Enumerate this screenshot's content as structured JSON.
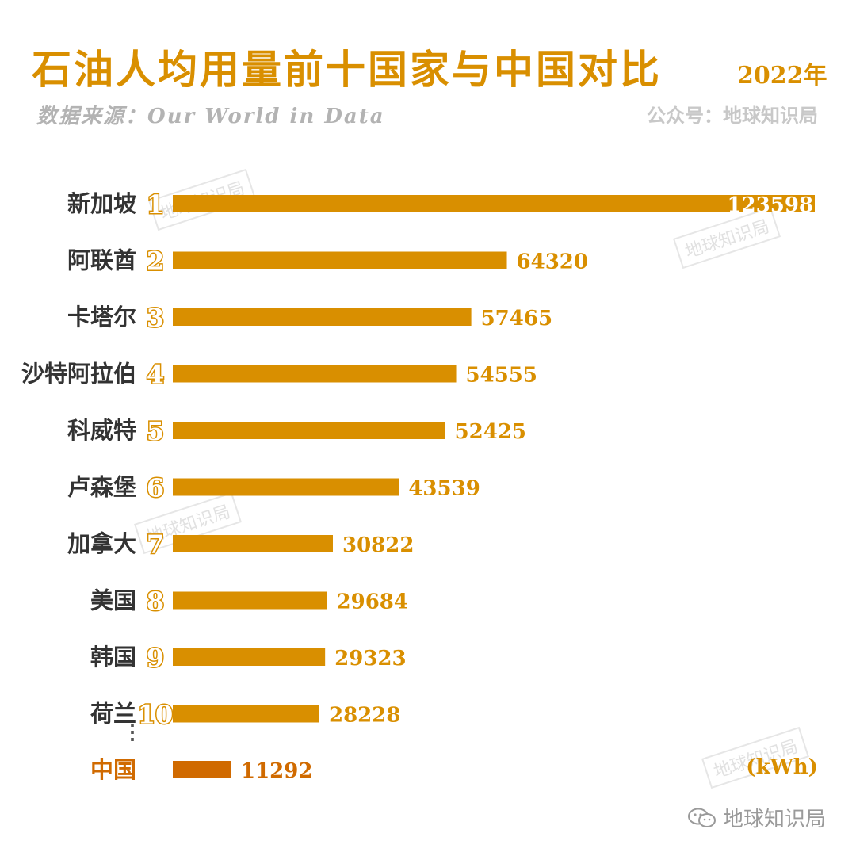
{
  "header": {
    "title": "石油人均用量前十国家与中国对比",
    "year": "2022年",
    "source": "数据来源：Our World in Data",
    "account": "公众号：地球知识局"
  },
  "watermark_text": "地球知识局",
  "footer": {
    "brand": "地球知识局",
    "icon": "wechat-icon"
  },
  "colors": {
    "bar": "#d98f00",
    "highlight_bar": "#d06a00",
    "badge": "#d98f00"
  },
  "chart_data": {
    "type": "bar",
    "orientation": "horizontal",
    "title": "石油人均用量前十国家与中国对比",
    "unit": "(kWh)",
    "xlim": [
      0,
      123598
    ],
    "categories": [
      "新加坡",
      "阿联酋",
      "卡塔尔",
      "沙特阿拉伯",
      "科威特",
      "卢森堡",
      "加拿大",
      "美国",
      "韩国",
      "荷兰",
      "中国"
    ],
    "ranks": [
      "1",
      "2",
      "3",
      "4",
      "5",
      "6",
      "7",
      "8",
      "9",
      "10",
      ""
    ],
    "values": [
      123598,
      64320,
      57465,
      54555,
      52425,
      43539,
      30822,
      29684,
      29323,
      28228,
      11292
    ],
    "highlight": "中国",
    "ellipsis": "⋮"
  }
}
